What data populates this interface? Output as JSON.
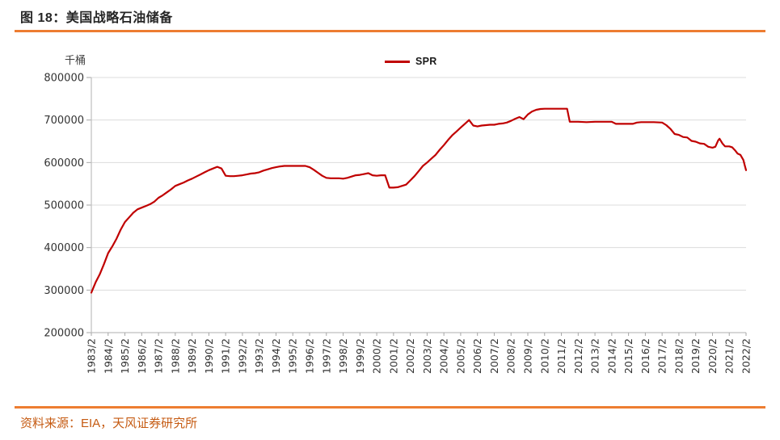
{
  "figure": {
    "title": "图 18：美国战略石油储备",
    "source": "资料来源：EIA，天风证券研究所"
  },
  "colors": {
    "accent_rule": "#ED7D31",
    "source_text": "#C55A11",
    "series_red": "#C00000",
    "gridline": "#DCDCDC"
  },
  "chart_data": {
    "type": "line",
    "title": "美国战略石油储备",
    "unit_label": "千桶",
    "grid": true,
    "legend": {
      "position": "top-center",
      "entries": [
        {
          "label": "SPR",
          "color": "#C00000"
        }
      ]
    },
    "y_axis": {
      "min": 200000,
      "max": 800000,
      "step": 100000,
      "tick_labels": [
        "200000",
        "300000",
        "400000",
        "500000",
        "600000",
        "700000",
        "800000"
      ]
    },
    "x_tick_labels": [
      "1983/2",
      "1984/2",
      "1985/2",
      "1986/2",
      "1987/2",
      "1988/2",
      "1989/2",
      "1990/2",
      "1991/2",
      "1992/2",
      "1993/2",
      "1994/2",
      "1995/2",
      "1996/2",
      "1997/2",
      "1998/2",
      "1999/2",
      "2000/2",
      "2001/2",
      "2002/2",
      "2003/2",
      "2004/2",
      "2005/2",
      "2006/2",
      "2007/2",
      "2008/2",
      "2009/2",
      "2010/2",
      "2011/2",
      "2012/2",
      "2013/2",
      "2014/2",
      "2015/2",
      "2016/2",
      "2017/2",
      "2018/2",
      "2019/2",
      "2020/2",
      "2021/2",
      "2022/2"
    ],
    "series": [
      {
        "name": "SPR",
        "color": "#C00000",
        "points": [
          [
            1983.08,
            294000
          ],
          [
            1983.33,
            318000
          ],
          [
            1983.58,
            337000
          ],
          [
            1983.83,
            361000
          ],
          [
            1984.08,
            387000
          ],
          [
            1984.33,
            403000
          ],
          [
            1984.58,
            421000
          ],
          [
            1984.83,
            442000
          ],
          [
            1985.08,
            460000
          ],
          [
            1985.33,
            471000
          ],
          [
            1985.58,
            482000
          ],
          [
            1985.83,
            490000
          ],
          [
            1986.08,
            494000
          ],
          [
            1986.33,
            498000
          ],
          [
            1986.58,
            502000
          ],
          [
            1986.83,
            508000
          ],
          [
            1987.08,
            517000
          ],
          [
            1987.33,
            523000
          ],
          [
            1987.58,
            530000
          ],
          [
            1987.83,
            537000
          ],
          [
            1988.08,
            545000
          ],
          [
            1988.33,
            549000
          ],
          [
            1988.58,
            553000
          ],
          [
            1988.83,
            558000
          ],
          [
            1989.08,
            562000
          ],
          [
            1989.33,
            567000
          ],
          [
            1989.58,
            572000
          ],
          [
            1989.83,
            577000
          ],
          [
            1990.08,
            582000
          ],
          [
            1990.33,
            586000
          ],
          [
            1990.58,
            590000
          ],
          [
            1990.83,
            586000
          ],
          [
            1991.08,
            569000
          ],
          [
            1991.33,
            568000
          ],
          [
            1991.58,
            568000
          ],
          [
            1991.83,
            569000
          ],
          [
            1992.08,
            570000
          ],
          [
            1992.33,
            572000
          ],
          [
            1992.58,
            574000
          ],
          [
            1992.83,
            575000
          ],
          [
            1993.08,
            577000
          ],
          [
            1993.33,
            581000
          ],
          [
            1993.58,
            584000
          ],
          [
            1993.83,
            587000
          ],
          [
            1994.08,
            589000
          ],
          [
            1994.33,
            591000
          ],
          [
            1994.58,
            592000
          ],
          [
            1994.83,
            592000
          ],
          [
            1995.08,
            592000
          ],
          [
            1995.33,
            592000
          ],
          [
            1995.58,
            592000
          ],
          [
            1995.83,
            592000
          ],
          [
            1996.08,
            589000
          ],
          [
            1996.33,
            583000
          ],
          [
            1996.58,
            576000
          ],
          [
            1996.83,
            569000
          ],
          [
            1997.08,
            564000
          ],
          [
            1997.33,
            563000
          ],
          [
            1997.58,
            563000
          ],
          [
            1997.83,
            563000
          ],
          [
            1998.08,
            562000
          ],
          [
            1998.33,
            564000
          ],
          [
            1998.58,
            567000
          ],
          [
            1998.83,
            570000
          ],
          [
            1999.08,
            571000
          ],
          [
            1999.33,
            573000
          ],
          [
            1999.58,
            575000
          ],
          [
            1999.83,
            570000
          ],
          [
            2000.08,
            569000
          ],
          [
            2000.33,
            570000
          ],
          [
            2000.58,
            570000
          ],
          [
            2000.83,
            541000
          ],
          [
            2001.08,
            541000
          ],
          [
            2001.33,
            542000
          ],
          [
            2001.58,
            545000
          ],
          [
            2001.83,
            548000
          ],
          [
            2002.08,
            558000
          ],
          [
            2002.33,
            568000
          ],
          [
            2002.58,
            580000
          ],
          [
            2002.83,
            592000
          ],
          [
            2003.08,
            600000
          ],
          [
            2003.33,
            609000
          ],
          [
            2003.58,
            618000
          ],
          [
            2003.83,
            630000
          ],
          [
            2004.08,
            641000
          ],
          [
            2004.33,
            653000
          ],
          [
            2004.58,
            664000
          ],
          [
            2004.83,
            673000
          ],
          [
            2005.08,
            682000
          ],
          [
            2005.33,
            691000
          ],
          [
            2005.58,
            700000
          ],
          [
            2005.83,
            687000
          ],
          [
            2006.08,
            685000
          ],
          [
            2006.33,
            687000
          ],
          [
            2006.58,
            688000
          ],
          [
            2006.83,
            689000
          ],
          [
            2007.08,
            689000
          ],
          [
            2007.33,
            691000
          ],
          [
            2007.58,
            692000
          ],
          [
            2007.83,
            694000
          ],
          [
            2008.08,
            698000
          ],
          [
            2008.33,
            703000
          ],
          [
            2008.58,
            707000
          ],
          [
            2008.83,
            702000
          ],
          [
            2009.08,
            713000
          ],
          [
            2009.33,
            720000
          ],
          [
            2009.58,
            724000
          ],
          [
            2009.83,
            726000
          ],
          [
            2010.08,
            726500
          ],
          [
            2010.58,
            726500
          ],
          [
            2011.08,
            726500
          ],
          [
            2011.42,
            726500
          ],
          [
            2011.58,
            696000
          ],
          [
            2011.83,
            696000
          ],
          [
            2012.08,
            696000
          ],
          [
            2012.58,
            695000
          ],
          [
            2013.08,
            696000
          ],
          [
            2013.58,
            696000
          ],
          [
            2014.08,
            696000
          ],
          [
            2014.33,
            691000
          ],
          [
            2014.83,
            691000
          ],
          [
            2015.08,
            691000
          ],
          [
            2015.33,
            691000
          ],
          [
            2015.58,
            694000
          ],
          [
            2015.83,
            695000
          ],
          [
            2016.08,
            695000
          ],
          [
            2016.58,
            695000
          ],
          [
            2017.08,
            694000
          ],
          [
            2017.33,
            688000
          ],
          [
            2017.58,
            679000
          ],
          [
            2017.83,
            667000
          ],
          [
            2018.08,
            665000
          ],
          [
            2018.33,
            660000
          ],
          [
            2018.58,
            659000
          ],
          [
            2018.83,
            651000
          ],
          [
            2019.08,
            649000
          ],
          [
            2019.33,
            645000
          ],
          [
            2019.58,
            644000
          ],
          [
            2019.83,
            637000
          ],
          [
            2020.08,
            635000
          ],
          [
            2020.25,
            637000
          ],
          [
            2020.42,
            652000
          ],
          [
            2020.5,
            656000
          ],
          [
            2020.67,
            645000
          ],
          [
            2020.83,
            638000
          ],
          [
            2021.08,
            638000
          ],
          [
            2021.25,
            636000
          ],
          [
            2021.42,
            629000
          ],
          [
            2021.58,
            621000
          ],
          [
            2021.75,
            618000
          ],
          [
            2021.92,
            606000
          ],
          [
            2022.0,
            594000
          ],
          [
            2022.08,
            582000
          ]
        ]
      }
    ]
  }
}
